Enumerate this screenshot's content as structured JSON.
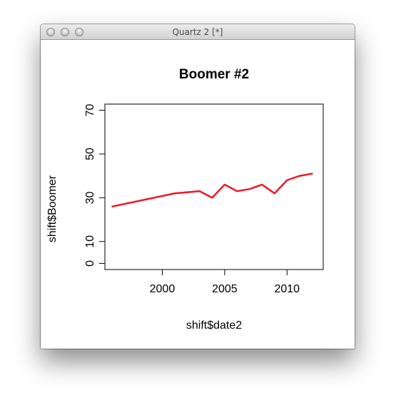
{
  "window": {
    "title": "Quartz 2 [*]"
  },
  "icons": {
    "close": "close-button-icon",
    "minimize": "minimize-button-icon",
    "maximize": "maximize-button-icon"
  },
  "chart_data": {
    "type": "line",
    "title": "Boomer #2",
    "xlabel": "shift$date2",
    "ylabel": "shift$Boomer",
    "xlim": [
      1995.4,
      2012.9
    ],
    "ylim": [
      -2.8,
      72.8
    ],
    "x_ticks": [
      2000,
      2005,
      2010
    ],
    "y_ticks": [
      0,
      10,
      30,
      50,
      70
    ],
    "grid": false,
    "legend": "none",
    "series": [
      {
        "color": "#e8202e",
        "x": [
          1996,
          2001,
          2003,
          2004,
          2005,
          2006,
          2007,
          2008,
          2009,
          2010,
          2011,
          2012
        ],
        "y": [
          26,
          32,
          33,
          30,
          36,
          33,
          34,
          36,
          32,
          38,
          40,
          41
        ]
      }
    ]
  }
}
